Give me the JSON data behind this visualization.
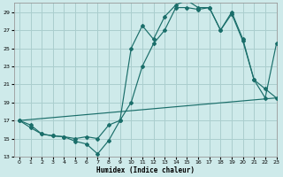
{
  "xlabel": "Humidex (Indice chaleur)",
  "bg_color": "#ceeaea",
  "grid_color": "#aacece",
  "line_color": "#1a6e6a",
  "line1_x": [
    0,
    1,
    2,
    3,
    4,
    5,
    6,
    7,
    8,
    9,
    10,
    11,
    12,
    13,
    14,
    15,
    16,
    17,
    18,
    19,
    20,
    21,
    22,
    23
  ],
  "line1_y": [
    17.0,
    16.2,
    15.5,
    15.3,
    15.2,
    14.7,
    14.4,
    13.3,
    14.8,
    17.0,
    19.0,
    23.0,
    25.5,
    27.0,
    29.5,
    29.5,
    29.3,
    29.5,
    27.0,
    29.0,
    26.0,
    21.5,
    20.5,
    19.5
  ],
  "line2_x": [
    0,
    1,
    2,
    3,
    4,
    5,
    6,
    7,
    8,
    9,
    10,
    11,
    12,
    13,
    14,
    15,
    16,
    17,
    18,
    19,
    20,
    21,
    22,
    23
  ],
  "line2_y": [
    17.0,
    16.5,
    15.5,
    15.3,
    15.2,
    15.0,
    15.2,
    15.0,
    16.5,
    17.0,
    25.0,
    27.5,
    26.0,
    28.5,
    29.8,
    30.3,
    29.5,
    29.5,
    27.0,
    28.8,
    25.8,
    21.5,
    19.5,
    25.5
  ],
  "line3_x": [
    0,
    23
  ],
  "line3_y": [
    17.0,
    19.5
  ],
  "xlim": [
    -0.5,
    23
  ],
  "ylim": [
    13,
    30
  ],
  "yticks": [
    13,
    15,
    17,
    19,
    21,
    23,
    25,
    27,
    29
  ],
  "xticks": [
    0,
    1,
    2,
    3,
    4,
    5,
    6,
    7,
    8,
    9,
    10,
    11,
    12,
    13,
    14,
    15,
    16,
    17,
    18,
    19,
    20,
    21,
    22,
    23
  ]
}
